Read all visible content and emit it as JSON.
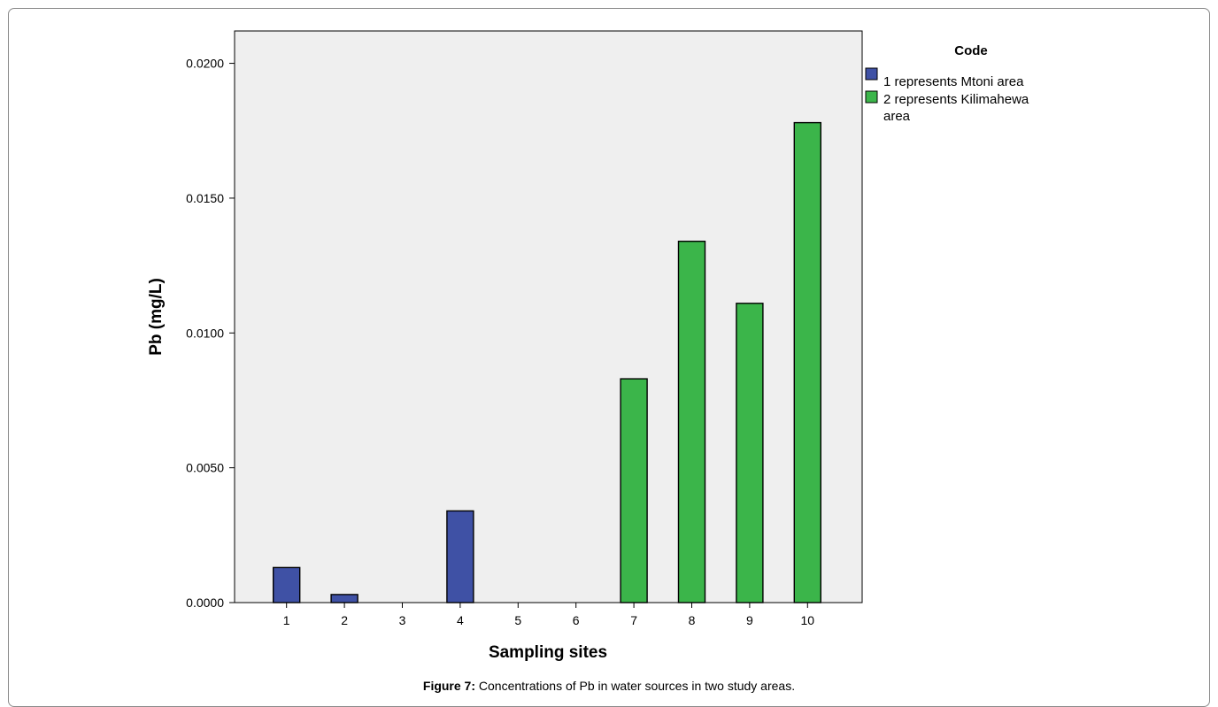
{
  "chart_data": {
    "type": "bar",
    "categories": [
      "1",
      "2",
      "3",
      "4",
      "5",
      "6",
      "7",
      "8",
      "9",
      "10"
    ],
    "series": [
      {
        "name": "1 represents Mtoni area",
        "color": "#3f51a5",
        "values": [
          0.0013,
          0.0003,
          0,
          0.0034,
          0,
          0,
          null,
          null,
          null,
          null
        ]
      },
      {
        "name": "2 represents Kilimahewa area",
        "color": "#3bb54a",
        "values": [
          null,
          null,
          null,
          null,
          null,
          null,
          0.0083,
          0.0134,
          0.0111,
          0.0178
        ]
      }
    ],
    "xlabel": "Sampling sites",
    "ylabel": "Pb (mg/L)",
    "ylim": [
      0,
      0.0212
    ],
    "yticks": [
      "0.0000",
      "0.0050",
      "0.0100",
      "0.0150",
      "0.0200"
    ],
    "ytick_values": [
      0,
      0.005,
      0.01,
      0.015,
      0.02
    ],
    "legend_title": "Code",
    "legend_position": "top-right outside plot",
    "plot_background": "#efefef",
    "grid": false
  },
  "caption": {
    "label": "Figure 7:",
    "text": " Concentrations of Pb in water sources in two study areas."
  }
}
